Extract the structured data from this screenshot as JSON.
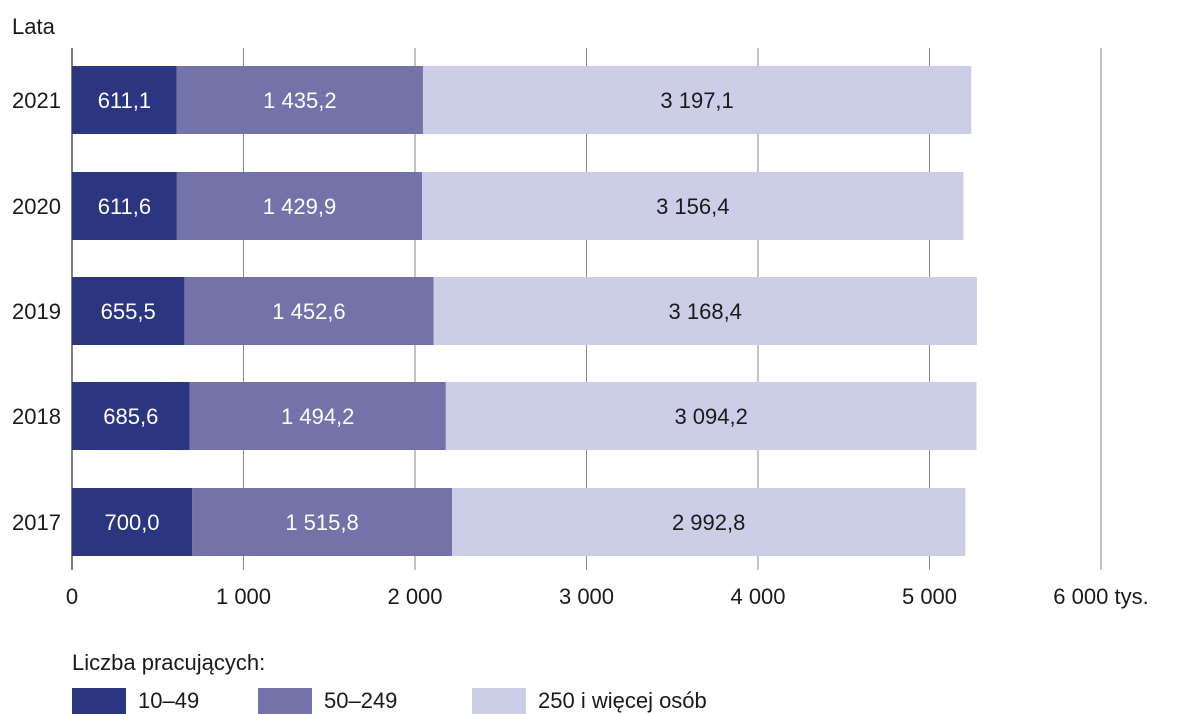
{
  "chart_data": {
    "type": "bar",
    "orientation": "horizontal",
    "stacked": true,
    "title": "",
    "ylabel": "Lata",
    "xlabel": "",
    "x_unit_label": "6 000 tys.",
    "xlim": [
      0,
      6000
    ],
    "x_ticks": [
      0,
      1000,
      2000,
      3000,
      4000,
      5000,
      6000
    ],
    "x_tick_labels": [
      "0",
      "1 000",
      "2 000",
      "3 000",
      "4 000",
      "5 000",
      "6 000 tys."
    ],
    "grid": "vertical",
    "categories": [
      "2021",
      "2020",
      "2019",
      "2018",
      "2017"
    ],
    "series": [
      {
        "name": "10–49",
        "color": "#2c3680",
        "values": [
          611.1,
          611.6,
          655.5,
          685.6,
          700.0
        ],
        "labels": [
          "611,1",
          "611,6",
          "655,5",
          "685,6",
          "700,0"
        ]
      },
      {
        "name": "50–249",
        "color": "#7372a9",
        "values": [
          1435.2,
          1429.9,
          1452.6,
          1494.2,
          1515.8
        ],
        "labels": [
          "1 435,2",
          "1 429,9",
          "1 452,6",
          "1 494,2",
          "1 515,8"
        ]
      },
      {
        "name": "250 i więcej osób",
        "color": "#cccde6",
        "values": [
          3197.1,
          3156.4,
          3168.4,
          3094.2,
          2992.8
        ],
        "labels": [
          "3 197,1",
          "3 156,4",
          "3 168,4",
          "3 094,2",
          "2 992,8"
        ]
      }
    ],
    "legend": {
      "title": "Liczba pracujących:",
      "placement": "bottom-left"
    }
  }
}
